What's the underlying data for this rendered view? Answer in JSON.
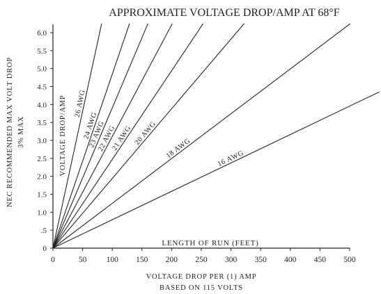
{
  "chart_data": {
    "type": "line",
    "title": "APPROXIMATE VOLTAGE DROP/AMP AT 68°F",
    "ylabel_lines": [
      "NEC RECOMMENDED MAX VOLT DROP",
      "3% MAX"
    ],
    "inner_ylabel": "VOLTAGE DROP/AMP",
    "inner_xlabel": "LENGTH OF RUN (FEET)",
    "xlabel_lines": [
      "VOLTAGE DROP PER (1) AMP",
      "BASED ON 115 VOLTS"
    ],
    "xlim": [
      0,
      500
    ],
    "ylim": [
      0,
      6.0
    ],
    "x_ticks": [
      0,
      50,
      100,
      150,
      200,
      250,
      300,
      350,
      400,
      450,
      500
    ],
    "y_ticks": [
      "0",
      ".5",
      "1.0",
      "1.5",
      "2.0",
      "2.5",
      "3.0",
      "3.5",
      "4.0",
      "4.5",
      "5.0",
      "5.5",
      "6.0"
    ],
    "series": [
      {
        "name": "26 AWG",
        "x": [
          0,
          82
        ],
        "y": [
          0,
          6.25
        ]
      },
      {
        "name": "24 AWG",
        "x": [
          0,
          129
        ],
        "y": [
          0,
          6.25
        ]
      },
      {
        "name": "23 AWG",
        "x": [
          0,
          160
        ],
        "y": [
          0,
          6.25
        ]
      },
      {
        "name": "22 AWG",
        "x": [
          0,
          201
        ],
        "y": [
          0,
          6.25
        ]
      },
      {
        "name": "21 AWG",
        "x": [
          0,
          253
        ],
        "y": [
          0,
          6.25
        ]
      },
      {
        "name": "20 AWG",
        "x": [
          0,
          322
        ],
        "y": [
          0,
          6.25
        ]
      },
      {
        "name": "18 AWG",
        "x": [
          0,
          501
        ],
        "y": [
          0,
          6.25
        ]
      },
      {
        "name": "16 AWG",
        "x": [
          0,
          550
        ],
        "y": [
          0,
          4.35
        ]
      }
    ]
  }
}
